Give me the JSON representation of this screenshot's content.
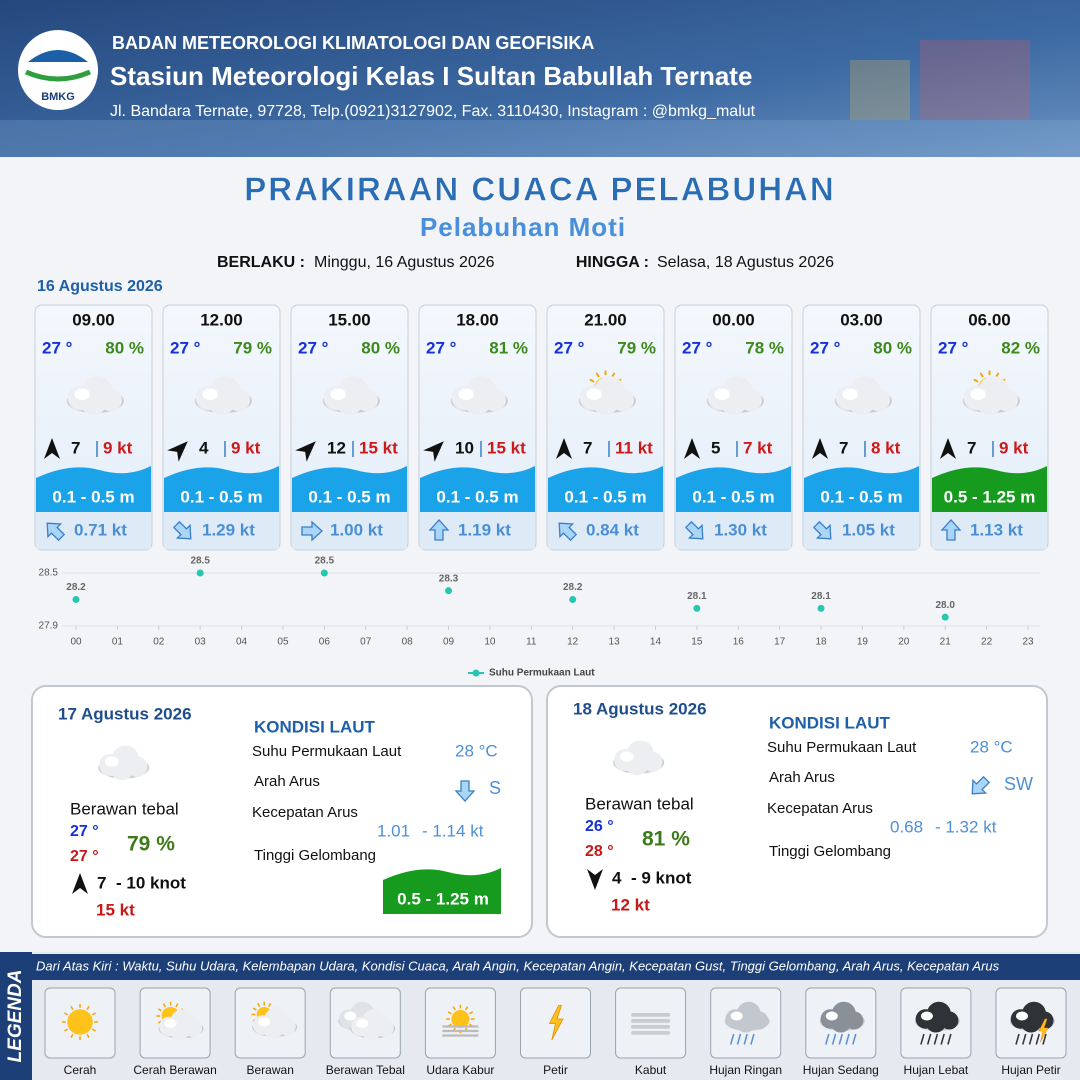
{
  "header": {
    "agency": "BADAN METEOROLOGI KLIMATOLOGI DAN GEOFISIKA",
    "station": "Stasiun Meteorologi Kelas I Sultan Babullah Ternate",
    "address": "Jl. Bandara Ternate, 97728, Telp.(0921)3127902, Fax. 3110430, Instagram : @bmkg_malut",
    "logo": "BMKG"
  },
  "title": "PRAKIRAAN CUACA PELABUHAN",
  "subtitle": "Pelabuhan Moti",
  "validity": {
    "from_label": "BERLAKU :",
    "from": "Minggu, 16 Agustus 2026",
    "to_label": "HINGGA :",
    "to": "Selasa, 18 Agustus 2026"
  },
  "day1": {
    "date": "16 Agustus 2026",
    "forecasts": [
      {
        "time": "09.00",
        "temp": "27 °",
        "humidity": "80 %",
        "wind": "7",
        "gust": "9 kt",
        "wave": "0.1 - 0.5 m",
        "wave_color": "#1aa3e8",
        "current": "0.71 kt"
      },
      {
        "time": "12.00",
        "temp": "27 °",
        "humidity": "79 %",
        "wind": "4",
        "gust": "9 kt",
        "wave": "0.1 - 0.5 m",
        "wave_color": "#1aa3e8",
        "current": "1.29 kt"
      },
      {
        "time": "15.00",
        "temp": "27 °",
        "humidity": "80 %",
        "wind": "12",
        "gust": "15 kt",
        "wave": "0.1 - 0.5 m",
        "wave_color": "#1aa3e8",
        "current": "1.00 kt"
      },
      {
        "time": "18.00",
        "temp": "27 °",
        "humidity": "81 %",
        "wind": "10",
        "gust": "15 kt",
        "wave": "0.1 - 0.5 m",
        "wave_color": "#1aa3e8",
        "current": "1.19 kt"
      },
      {
        "time": "21.00",
        "temp": "27 °",
        "humidity": "79 %",
        "wind": "7",
        "gust": "11 kt",
        "wave": "0.1 - 0.5 m",
        "wave_color": "#1aa3e8",
        "current": "0.84 kt"
      },
      {
        "time": "00.00",
        "temp": "27 °",
        "humidity": "78 %",
        "wind": "5",
        "gust": "7 kt",
        "wave": "0.1 - 0.5 m",
        "wave_color": "#1aa3e8",
        "current": "1.30 kt"
      },
      {
        "time": "03.00",
        "temp": "27 °",
        "humidity": "80 %",
        "wind": "7",
        "gust": "8 kt",
        "wave": "0.1 - 0.5 m",
        "wave_color": "#1aa3e8",
        "current": "1.05 kt"
      },
      {
        "time": "06.00",
        "temp": "27 °",
        "humidity": "82 %",
        "wind": "7",
        "gust": "9 kt",
        "wave": "0.5 - 1.25 m",
        "wave_color": "#169b1e",
        "current": "1.13 kt"
      }
    ]
  },
  "chart_data": {
    "type": "scatter",
    "x": [
      0,
      3,
      6,
      9,
      12,
      15,
      18,
      21
    ],
    "series": [
      {
        "name": "Suhu Permukaan Laut",
        "color": "#26c6b0",
        "values": [
          28.2,
          28.5,
          28.5,
          28.3,
          28.2,
          28.1,
          28.1,
          28.0
        ],
        "value_labels": [
          "28.2",
          "28.5",
          "28.5",
          "28.3",
          "28.2",
          "28.1",
          "28.1",
          "28.0"
        ]
      }
    ],
    "xlim": [
      0,
      23
    ],
    "xticks": [
      {
        "value": 0,
        "label": "00"
      },
      {
        "value": 1,
        "label": "01"
      },
      {
        "value": 2,
        "label": "02"
      },
      {
        "value": 3,
        "label": "03"
      },
      {
        "value": 4,
        "label": "04"
      },
      {
        "value": 5,
        "label": "05"
      },
      {
        "value": 6,
        "label": "06"
      },
      {
        "value": 7,
        "label": "07"
      },
      {
        "value": 8,
        "label": "08"
      },
      {
        "value": 9,
        "label": "09"
      },
      10,
      11,
      12,
      13,
      14,
      15,
      16,
      17,
      18,
      19,
      20,
      21,
      22,
      23
    ],
    "ylim": [
      27.9,
      28.5
    ],
    "yticks": [
      27.9,
      28.5
    ],
    "grid": true
  },
  "day2": {
    "date": "17 Agustus 2026",
    "condition": "Berawan tebal",
    "temp_min": "27 °",
    "temp_max": "27 °",
    "humidity": "79 %",
    "wind": "7",
    "wind_range": "- 10 knot",
    "gust": "15 kt",
    "sea_title": "KONDISI LAUT",
    "sst_label": "Suhu Permukaan Laut",
    "sst": "28 °C",
    "current_dir_label": "Arah Arus",
    "current_dir": "S",
    "current_speed_label": "Kecepatan Arus",
    "current_speed_min": "1.01",
    "current_speed_max": "- 1.14 kt",
    "wave_label": "Tinggi Gelombang",
    "wave": "0.5 - 1.25 m"
  },
  "day3": {
    "date": "18 Agustus 2026",
    "condition": "Berawan tebal",
    "temp_min": "26 °",
    "temp_max": "28 °",
    "humidity": "81 %",
    "wind": "4",
    "wind_range": "- 9 knot",
    "gust": "12 kt",
    "sea_title": "KONDISI LAUT",
    "sst_label": "Suhu Permukaan Laut",
    "sst": "28 °C",
    "current_dir_label": "Arah Arus",
    "current_dir": "SW",
    "current_speed_label": "Kecepatan Arus",
    "current_speed_min": "0.68",
    "current_speed_max": "- 1.32 kt",
    "wave_label": "Tinggi Gelombang"
  },
  "legend": {
    "title": "LEGENDA",
    "description": "Dari Atas Kiri : Waktu, Suhu Udara, Kelembapan Udara, Kondisi Cuaca, Arah Angin, Kecepatan Angin, Kecepatan Gust, Tinggi Gelombang, Arah Arus, Kecepatan Arus",
    "items": [
      "Cerah",
      "Cerah Berawan",
      "Berawan",
      "Berawan Tebal",
      "Udara Kabur",
      "Petir",
      "Kabut",
      "Hujan Ringan",
      "Hujan Sedang",
      "Hujan Lebat",
      "Hujan Petir"
    ]
  }
}
